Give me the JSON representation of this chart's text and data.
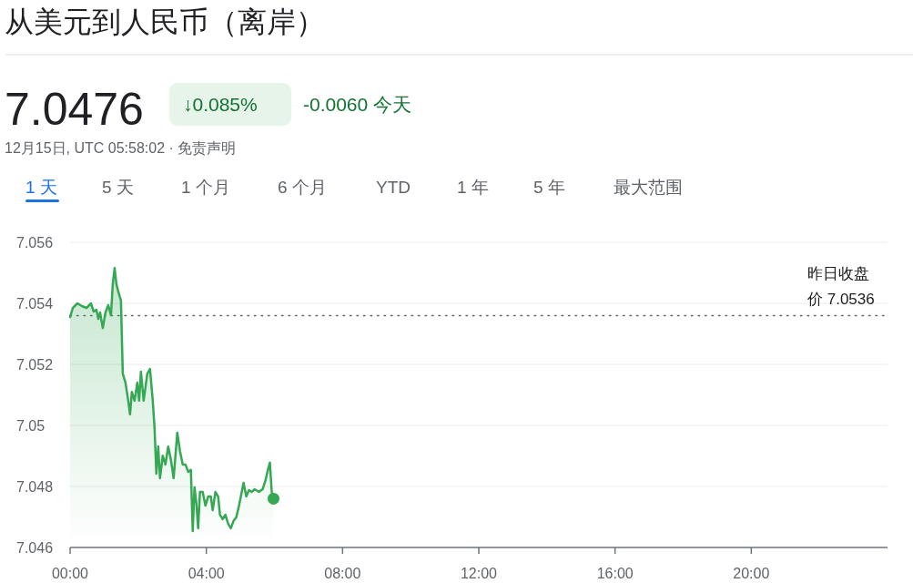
{
  "chart_data": {
    "type": "area",
    "title": "从美元到人民币（离岸）",
    "annotations": [
      "7.0476",
      "↓0.085%",
      "-0.0060 今天",
      "12月15日, UTC 05:58:02 · 免责声明",
      "1 天",
      "5 天",
      "1 个月",
      "6 个月",
      "YTD",
      "1 年",
      "5 年",
      "最大范围"
    ],
    "series": [
      {
        "color": "#34a853",
        "x": [
          0,
          0.08,
          0.213,
          0.347,
          0.48,
          0.613,
          0.693,
          0.773,
          0.827,
          0.88,
          0.96,
          1.04,
          1.12,
          1.2,
          1.253,
          1.307,
          1.36,
          1.413,
          1.493,
          1.547,
          1.627,
          1.707,
          1.76,
          1.813,
          1.893,
          1.973,
          2.027,
          2.08,
          2.16,
          2.267,
          2.347,
          2.427,
          2.48,
          2.533,
          2.587,
          2.64,
          2.72,
          2.8,
          2.88,
          2.96,
          3.04,
          3.147,
          3.227,
          3.307,
          3.387,
          3.467,
          3.547,
          3.6,
          3.653,
          3.707,
          3.76,
          3.813,
          3.893,
          3.973,
          4.053,
          4.133,
          4.187,
          4.267,
          4.347,
          4.4,
          4.48,
          4.56,
          4.64,
          4.72,
          4.8,
          4.88,
          4.96,
          5.04,
          5.093,
          5.173,
          5.253,
          5.333,
          5.413,
          5.547,
          5.653,
          5.733,
          5.813,
          5.867,
          5.92,
          5.973
        ],
        "values": [
          7.05355,
          7.05385,
          7.054,
          7.05391,
          7.05385,
          7.054,
          7.05373,
          7.05379,
          7.05349,
          7.0537,
          7.05319,
          7.0537,
          7.05394,
          7.05361,
          7.05463,
          7.05516,
          7.05463,
          7.05439,
          7.05409,
          7.0517,
          7.0514,
          7.05081,
          7.05036,
          7.0511,
          7.05081,
          7.0514,
          7.05081,
          7.05176,
          7.05081,
          7.0517,
          7.05185,
          7.05081,
          7.04991,
          7.04842,
          7.04931,
          7.04827,
          7.04901,
          7.04872,
          7.04931,
          7.04887,
          7.04827,
          7.04976,
          7.04916,
          7.04872,
          7.04872,
          7.04848,
          7.04854,
          7.04654,
          7.04797,
          7.04746,
          7.04663,
          7.04782,
          7.04782,
          7.04737,
          7.04767,
          7.04767,
          7.04722,
          7.04782,
          7.04767,
          7.04707,
          7.04693,
          7.04707,
          7.04678,
          7.04663,
          7.04687,
          7.04699,
          7.04737,
          7.04782,
          7.04812,
          7.04767,
          7.04788,
          7.04782,
          7.04791,
          7.04782,
          7.04791,
          7.04818,
          7.04857,
          7.04878,
          7.04782,
          7.0476
        ]
      }
    ],
    "xlim": [
      0,
      24
    ],
    "xticks": [
      {
        "value": 0,
        "label": "00:00"
      },
      {
        "value": 4,
        "label": "04:00"
      },
      {
        "value": 8,
        "label": "08:00"
      },
      {
        "value": 12,
        "label": "12:00"
      },
      {
        "value": 16,
        "label": "16:00"
      },
      {
        "value": 20,
        "label": "20:00"
      }
    ],
    "ylim": [
      7.046,
      7.056
    ],
    "yticks": [
      7.046,
      7.048,
      7.05,
      7.052,
      7.054,
      7.056
    ],
    "grid": "y",
    "ref_lines": [
      {
        "axis": "y",
        "value": 7.0536,
        "label": "昨日收盘价 7.0536",
        "color": "#5f6368",
        "line_style": "dotted"
      }
    ]
  }
}
